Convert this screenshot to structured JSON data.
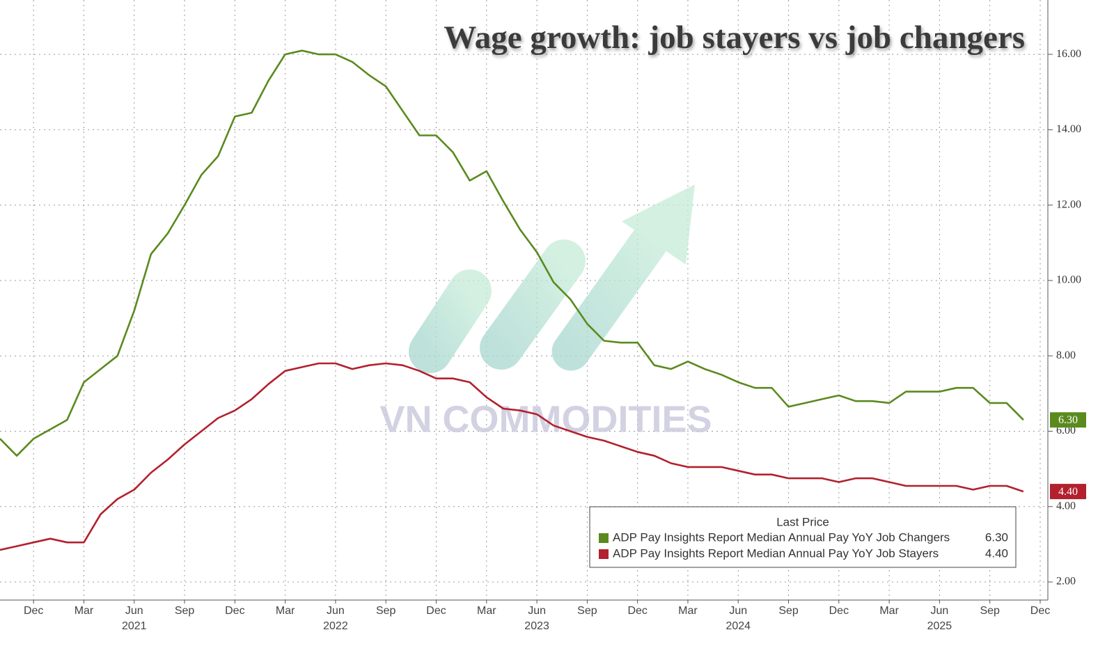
{
  "chart_data": {
    "type": "line",
    "title": "Wage growth: job stayers vs job changers",
    "watermark": "VN COMMODITIES",
    "legend_title": "Last Price",
    "x": [
      "2020-10",
      "2020-11",
      "2020-12",
      "2021-01",
      "2021-02",
      "2021-03",
      "2021-04",
      "2021-05",
      "2021-06",
      "2021-07",
      "2021-08",
      "2021-09",
      "2021-10",
      "2021-11",
      "2021-12",
      "2022-01",
      "2022-02",
      "2022-03",
      "2022-04",
      "2022-05",
      "2022-06",
      "2022-07",
      "2022-08",
      "2022-09",
      "2022-10",
      "2022-11",
      "2022-12",
      "2023-01",
      "2023-02",
      "2023-03",
      "2023-04",
      "2023-05",
      "2023-06",
      "2023-07",
      "2023-08",
      "2023-09",
      "2023-10",
      "2023-11",
      "2023-12",
      "2024-01",
      "2024-02",
      "2024-03",
      "2024-04",
      "2024-05",
      "2024-06",
      "2024-07",
      "2024-08",
      "2024-09",
      "2024-10",
      "2024-11",
      "2024-12",
      "2025-01",
      "2025-02",
      "2025-03",
      "2025-04",
      "2025-05",
      "2025-06",
      "2025-07",
      "2025-08",
      "2025-09",
      "2025-10",
      "2025-11"
    ],
    "series": [
      {
        "name": "ADP Pay Insights Report Median Annual Pay YoY Job Changers",
        "color": "#5a8a1e",
        "last_label": "6.30",
        "values": [
          5.8,
          5.35,
          5.8,
          6.05,
          6.3,
          7.3,
          7.65,
          8.0,
          9.2,
          10.7,
          11.25,
          12.0,
          12.8,
          13.3,
          14.35,
          14.45,
          15.3,
          16.0,
          16.1,
          16.0,
          16.0,
          15.8,
          15.45,
          15.15,
          14.5,
          13.85,
          13.85,
          13.4,
          12.65,
          12.9,
          12.1,
          11.35,
          10.75,
          9.95,
          9.5,
          8.85,
          8.4,
          8.35,
          8.35,
          7.75,
          7.65,
          7.85,
          7.65,
          7.5,
          7.3,
          7.15,
          7.15,
          6.65,
          6.75,
          6.85,
          6.95,
          6.8,
          6.8,
          6.75,
          7.05,
          7.05,
          7.05,
          7.15,
          7.15,
          6.75,
          6.75,
          6.3
        ]
      },
      {
        "name": "ADP Pay Insights Report Median Annual Pay YoY Job Stayers",
        "color": "#b3202e",
        "last_label": "4.40",
        "values": [
          2.85,
          2.95,
          3.05,
          3.15,
          3.05,
          3.05,
          3.8,
          4.2,
          4.45,
          4.9,
          5.25,
          5.65,
          6.0,
          6.35,
          6.55,
          6.85,
          7.25,
          7.6,
          7.7,
          7.8,
          7.8,
          7.65,
          7.75,
          7.8,
          7.75,
          7.6,
          7.4,
          7.4,
          7.3,
          6.9,
          6.6,
          6.55,
          6.45,
          6.15,
          6.0,
          5.85,
          5.75,
          5.6,
          5.45,
          5.35,
          5.15,
          5.05,
          5.05,
          5.05,
          4.95,
          4.85,
          4.85,
          4.75,
          4.75,
          4.75,
          4.65,
          4.75,
          4.75,
          4.65,
          4.55,
          4.55,
          4.55,
          4.55,
          4.45,
          4.55,
          4.55,
          4.4
        ]
      }
    ],
    "xlim": [
      "2020-10",
      "2025-12"
    ],
    "xticks": [
      {
        "value": "2020-12",
        "label": "Dec"
      },
      {
        "value": "2021-03",
        "label": "Mar"
      },
      {
        "value": "2021-06",
        "label": "Jun"
      },
      {
        "value": "2021-09",
        "label": "Sep"
      },
      {
        "value": "2021-12",
        "label": "Dec"
      },
      {
        "value": "2022-03",
        "label": "Mar"
      },
      {
        "value": "2022-06",
        "label": "Jun"
      },
      {
        "value": "2022-09",
        "label": "Sep"
      },
      {
        "value": "2022-12",
        "label": "Dec"
      },
      {
        "value": "2023-03",
        "label": "Mar"
      },
      {
        "value": "2023-06",
        "label": "Jun"
      },
      {
        "value": "2023-09",
        "label": "Sep"
      },
      {
        "value": "2023-12",
        "label": "Dec"
      },
      {
        "value": "2024-03",
        "label": "Mar"
      },
      {
        "value": "2024-06",
        "label": "Jun"
      },
      {
        "value": "2024-09",
        "label": "Sep"
      },
      {
        "value": "2024-12",
        "label": "Dec"
      },
      {
        "value": "2025-03",
        "label": "Mar"
      },
      {
        "value": "2025-06",
        "label": "Jun"
      },
      {
        "value": "2025-09",
        "label": "Sep"
      },
      {
        "value": "2025-12",
        "label": "Dec"
      }
    ],
    "xyears": [
      {
        "value": "2021-06",
        "label": "2021"
      },
      {
        "value": "2022-06",
        "label": "2022"
      },
      {
        "value": "2023-06",
        "label": "2023"
      },
      {
        "value": "2024-06",
        "label": "2024"
      },
      {
        "value": "2025-06",
        "label": "2025"
      }
    ],
    "ylim": [
      1.52,
      17.35
    ],
    "yticks": [
      {
        "value": 2,
        "label": "2.00"
      },
      {
        "value": 4,
        "label": "4.00"
      },
      {
        "value": 6,
        "label": "6.00"
      },
      {
        "value": 8,
        "label": "8.00"
      },
      {
        "value": 10,
        "label": "10.00"
      },
      {
        "value": 12,
        "label": "12.00"
      },
      {
        "value": 14,
        "label": "14.00"
      },
      {
        "value": 16,
        "label": "16.00"
      }
    ],
    "grid": true
  }
}
